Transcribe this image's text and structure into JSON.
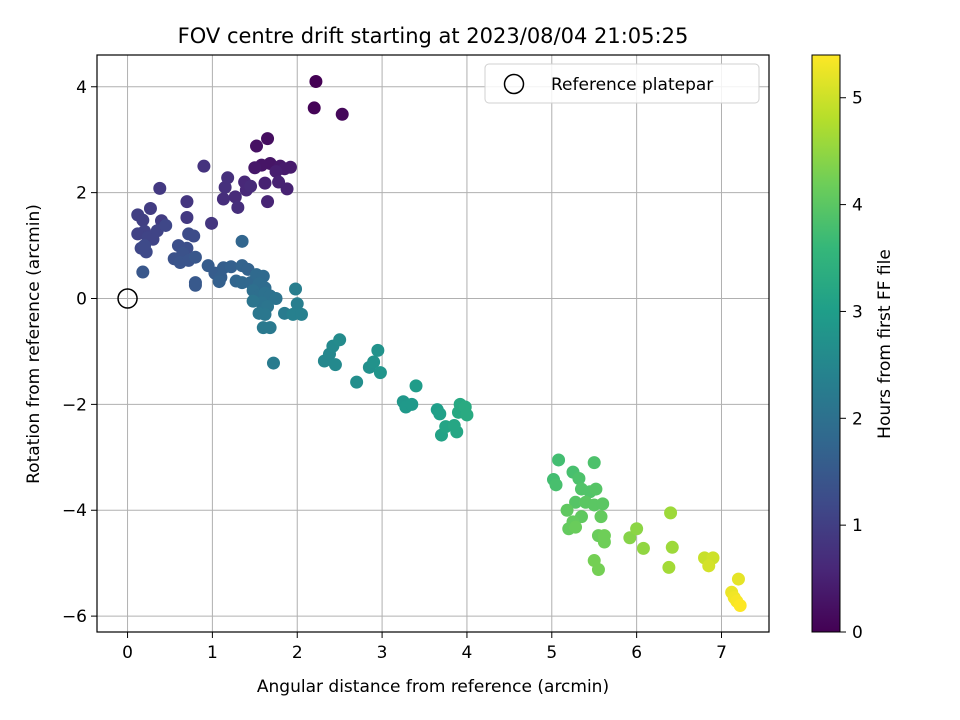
{
  "chart_data": {
    "type": "scatter",
    "title": "FOV centre drift starting at 2023/08/04 21:05:25",
    "xlabel": "Angular distance from reference (arcmin)",
    "ylabel": "Rotation from reference (arcmin)",
    "xlim": [
      -0.36,
      7.56
    ],
    "ylim": [
      -6.3,
      4.6
    ],
    "xticks": [
      0,
      1,
      2,
      3,
      4,
      5,
      6,
      7
    ],
    "yticks": [
      -6,
      -4,
      -2,
      0,
      2,
      4
    ],
    "grid": true,
    "legend": {
      "placement": "top-right",
      "entries": [
        "Reference platepar"
      ]
    },
    "reference_point": {
      "x": 0,
      "y": 0
    },
    "colorbar": {
      "label": "Hours from first FF file",
      "range": [
        0,
        5.4
      ],
      "ticks": [
        0,
        1,
        2,
        3,
        4,
        5
      ],
      "colormap": [
        "#440154",
        "#482878",
        "#3e4a89",
        "#31688e",
        "#26828e",
        "#1f9e89",
        "#35b779",
        "#6ece58",
        "#b5de2b",
        "#fde725"
      ]
    },
    "points": [
      {
        "x": 2.22,
        "y": 4.1,
        "t": 0.0
      },
      {
        "x": 2.2,
        "y": 3.6,
        "t": 0.05
      },
      {
        "x": 2.53,
        "y": 3.48,
        "t": 0.1
      },
      {
        "x": 1.65,
        "y": 3.02,
        "t": 0.2
      },
      {
        "x": 1.52,
        "y": 2.88,
        "t": 0.25
      },
      {
        "x": 1.68,
        "y": 2.55,
        "t": 0.3
      },
      {
        "x": 1.58,
        "y": 2.52,
        "t": 0.3
      },
      {
        "x": 1.5,
        "y": 2.47,
        "t": 0.35
      },
      {
        "x": 1.8,
        "y": 2.5,
        "t": 0.35
      },
      {
        "x": 1.92,
        "y": 2.48,
        "t": 0.4
      },
      {
        "x": 1.85,
        "y": 2.45,
        "t": 0.4
      },
      {
        "x": 1.75,
        "y": 2.4,
        "t": 0.45
      },
      {
        "x": 1.62,
        "y": 2.18,
        "t": 0.5
      },
      {
        "x": 1.88,
        "y": 2.07,
        "t": 0.5
      },
      {
        "x": 1.78,
        "y": 2.2,
        "t": 0.5
      },
      {
        "x": 1.65,
        "y": 1.83,
        "t": 0.55
      },
      {
        "x": 1.38,
        "y": 2.2,
        "t": 0.6
      },
      {
        "x": 1.4,
        "y": 2.05,
        "t": 0.6
      },
      {
        "x": 1.45,
        "y": 2.12,
        "t": 0.65
      },
      {
        "x": 1.27,
        "y": 1.92,
        "t": 0.65
      },
      {
        "x": 1.3,
        "y": 1.72,
        "t": 0.7
      },
      {
        "x": 1.13,
        "y": 1.88,
        "t": 0.7
      },
      {
        "x": 1.15,
        "y": 2.1,
        "t": 0.75
      },
      {
        "x": 1.18,
        "y": 2.28,
        "t": 0.75
      },
      {
        "x": 0.9,
        "y": 2.5,
        "t": 0.8
      },
      {
        "x": 0.99,
        "y": 1.42,
        "t": 0.85
      },
      {
        "x": 0.7,
        "y": 1.83,
        "t": 0.85
      },
      {
        "x": 0.7,
        "y": 1.53,
        "t": 0.9
      },
      {
        "x": 0.38,
        "y": 2.08,
        "t": 0.9
      },
      {
        "x": 0.4,
        "y": 1.47,
        "t": 0.95
      },
      {
        "x": 0.27,
        "y": 1.7,
        "t": 0.95
      },
      {
        "x": 0.12,
        "y": 1.58,
        "t": 1.0
      },
      {
        "x": 0.18,
        "y": 1.48,
        "t": 1.0
      },
      {
        "x": 0.2,
        "y": 1.27,
        "t": 1.05
      },
      {
        "x": 0.12,
        "y": 1.22,
        "t": 1.05
      },
      {
        "x": 0.24,
        "y": 1.15,
        "t": 1.1
      },
      {
        "x": 0.3,
        "y": 1.12,
        "t": 1.1
      },
      {
        "x": 0.35,
        "y": 1.28,
        "t": 1.1
      },
      {
        "x": 0.45,
        "y": 1.38,
        "t": 1.15
      },
      {
        "x": 0.16,
        "y": 0.95,
        "t": 1.15
      },
      {
        "x": 0.22,
        "y": 0.88,
        "t": 1.2
      },
      {
        "x": 0.2,
        "y": 1.0,
        "t": 1.2
      },
      {
        "x": 0.72,
        "y": 1.22,
        "t": 1.25
      },
      {
        "x": 0.78,
        "y": 1.18,
        "t": 1.25
      },
      {
        "x": 0.6,
        "y": 1.0,
        "t": 1.3
      },
      {
        "x": 0.7,
        "y": 0.95,
        "t": 1.3
      },
      {
        "x": 0.65,
        "y": 0.85,
        "t": 1.35
      },
      {
        "x": 0.55,
        "y": 0.75,
        "t": 1.35
      },
      {
        "x": 0.62,
        "y": 0.68,
        "t": 1.4
      },
      {
        "x": 0.72,
        "y": 0.72,
        "t": 1.4
      },
      {
        "x": 0.8,
        "y": 0.78,
        "t": 1.45
      },
      {
        "x": 0.18,
        "y": 0.5,
        "t": 1.45
      },
      {
        "x": 0.8,
        "y": 0.3,
        "t": 1.5
      },
      {
        "x": 0.8,
        "y": 0.25,
        "t": 1.5
      },
      {
        "x": 0.95,
        "y": 0.62,
        "t": 1.55
      },
      {
        "x": 1.03,
        "y": 0.48,
        "t": 1.55
      },
      {
        "x": 1.1,
        "y": 0.4,
        "t": 1.6
      },
      {
        "x": 1.13,
        "y": 0.58,
        "t": 1.6
      },
      {
        "x": 1.08,
        "y": 0.32,
        "t": 1.65
      },
      {
        "x": 1.22,
        "y": 0.6,
        "t": 1.65
      },
      {
        "x": 1.35,
        "y": 0.62,
        "t": 1.7
      },
      {
        "x": 1.42,
        "y": 0.55,
        "t": 1.7
      },
      {
        "x": 1.35,
        "y": 1.08,
        "t": 1.75
      },
      {
        "x": 1.28,
        "y": 0.33,
        "t": 1.75
      },
      {
        "x": 1.35,
        "y": 0.3,
        "t": 1.8
      },
      {
        "x": 1.45,
        "y": 0.3,
        "t": 1.8
      },
      {
        "x": 1.52,
        "y": 0.45,
        "t": 1.85
      },
      {
        "x": 1.6,
        "y": 0.42,
        "t": 1.85
      },
      {
        "x": 1.55,
        "y": 0.28,
        "t": 1.9
      },
      {
        "x": 1.62,
        "y": 0.2,
        "t": 1.9
      },
      {
        "x": 1.48,
        "y": 0.15,
        "t": 1.95
      },
      {
        "x": 1.55,
        "y": 0.05,
        "t": 1.95
      },
      {
        "x": 1.62,
        "y": 0.1,
        "t": 2.0
      },
      {
        "x": 1.68,
        "y": 0.05,
        "t": 2.0
      },
      {
        "x": 1.75,
        "y": 0.0,
        "t": 2.05
      },
      {
        "x": 1.58,
        "y": -0.08,
        "t": 2.05
      },
      {
        "x": 1.48,
        "y": -0.05,
        "t": 2.1
      },
      {
        "x": 1.65,
        "y": -0.15,
        "t": 2.1
      },
      {
        "x": 1.55,
        "y": -0.28,
        "t": 2.15
      },
      {
        "x": 1.62,
        "y": -0.3,
        "t": 2.15
      },
      {
        "x": 1.6,
        "y": -0.55,
        "t": 2.2
      },
      {
        "x": 1.68,
        "y": -0.55,
        "t": 2.2
      },
      {
        "x": 1.72,
        "y": -1.22,
        "t": 2.25
      },
      {
        "x": 1.85,
        "y": -0.28,
        "t": 2.25
      },
      {
        "x": 1.98,
        "y": 0.18,
        "t": 2.3
      },
      {
        "x": 2.0,
        "y": -0.1,
        "t": 2.3
      },
      {
        "x": 1.95,
        "y": -0.3,
        "t": 2.35
      },
      {
        "x": 2.05,
        "y": -0.3,
        "t": 2.35
      },
      {
        "x": 2.32,
        "y": -1.18,
        "t": 2.5
      },
      {
        "x": 2.38,
        "y": -1.05,
        "t": 2.5
      },
      {
        "x": 2.42,
        "y": -0.9,
        "t": 2.55
      },
      {
        "x": 2.45,
        "y": -1.25,
        "t": 2.55
      },
      {
        "x": 2.5,
        "y": -0.78,
        "t": 2.6
      },
      {
        "x": 2.7,
        "y": -1.58,
        "t": 2.65
      },
      {
        "x": 2.85,
        "y": -1.3,
        "t": 2.7
      },
      {
        "x": 2.9,
        "y": -1.2,
        "t": 2.75
      },
      {
        "x": 2.95,
        "y": -0.98,
        "t": 2.75
      },
      {
        "x": 2.98,
        "y": -1.4,
        "t": 2.8
      },
      {
        "x": 3.25,
        "y": -1.95,
        "t": 2.85
      },
      {
        "x": 3.28,
        "y": -2.05,
        "t": 2.9
      },
      {
        "x": 3.35,
        "y": -2.0,
        "t": 2.9
      },
      {
        "x": 3.4,
        "y": -1.65,
        "t": 2.95
      },
      {
        "x": 3.65,
        "y": -2.1,
        "t": 3.0
      },
      {
        "x": 3.68,
        "y": -2.18,
        "t": 3.05
      },
      {
        "x": 3.7,
        "y": -2.58,
        "t": 3.1
      },
      {
        "x": 3.75,
        "y": -2.42,
        "t": 3.15
      },
      {
        "x": 3.85,
        "y": -2.4,
        "t": 3.2
      },
      {
        "x": 3.88,
        "y": -2.52,
        "t": 3.2
      },
      {
        "x": 3.9,
        "y": -2.15,
        "t": 3.25
      },
      {
        "x": 3.92,
        "y": -2.0,
        "t": 3.25
      },
      {
        "x": 3.98,
        "y": -2.05,
        "t": 3.3
      },
      {
        "x": 4.0,
        "y": -2.2,
        "t": 3.3
      },
      {
        "x": 5.08,
        "y": -3.05,
        "t": 3.75
      },
      {
        "x": 5.02,
        "y": -3.42,
        "t": 3.75
      },
      {
        "x": 5.05,
        "y": -3.52,
        "t": 3.8
      },
      {
        "x": 5.25,
        "y": -3.28,
        "t": 3.8
      },
      {
        "x": 5.5,
        "y": -3.1,
        "t": 3.85
      },
      {
        "x": 5.32,
        "y": -3.4,
        "t": 3.85
      },
      {
        "x": 5.35,
        "y": -3.6,
        "t": 3.9
      },
      {
        "x": 5.45,
        "y": -3.65,
        "t": 3.9
      },
      {
        "x": 5.52,
        "y": -3.6,
        "t": 3.95
      },
      {
        "x": 5.28,
        "y": -3.85,
        "t": 3.95
      },
      {
        "x": 5.4,
        "y": -3.85,
        "t": 4.0
      },
      {
        "x": 5.5,
        "y": -3.9,
        "t": 4.0
      },
      {
        "x": 5.6,
        "y": -3.88,
        "t": 4.0
      },
      {
        "x": 5.18,
        "y": -4.0,
        "t": 4.05
      },
      {
        "x": 5.35,
        "y": -4.12,
        "t": 4.05
      },
      {
        "x": 5.58,
        "y": -4.12,
        "t": 4.1
      },
      {
        "x": 5.25,
        "y": -4.22,
        "t": 4.1
      },
      {
        "x": 5.2,
        "y": -4.35,
        "t": 4.1
      },
      {
        "x": 5.28,
        "y": -4.32,
        "t": 4.15
      },
      {
        "x": 5.55,
        "y": -4.48,
        "t": 4.15
      },
      {
        "x": 5.62,
        "y": -4.48,
        "t": 4.2
      },
      {
        "x": 5.62,
        "y": -4.6,
        "t": 4.2
      },
      {
        "x": 5.5,
        "y": -4.95,
        "t": 4.25
      },
      {
        "x": 5.55,
        "y": -5.12,
        "t": 4.25
      },
      {
        "x": 5.92,
        "y": -4.52,
        "t": 4.4
      },
      {
        "x": 6.0,
        "y": -4.35,
        "t": 4.45
      },
      {
        "x": 6.08,
        "y": -4.72,
        "t": 4.5
      },
      {
        "x": 6.4,
        "y": -4.05,
        "t": 4.6
      },
      {
        "x": 6.42,
        "y": -4.7,
        "t": 4.6
      },
      {
        "x": 6.38,
        "y": -5.08,
        "t": 4.65
      },
      {
        "x": 6.8,
        "y": -4.9,
        "t": 4.95
      },
      {
        "x": 6.9,
        "y": -4.9,
        "t": 5.0
      },
      {
        "x": 6.85,
        "y": -5.05,
        "t": 5.05
      },
      {
        "x": 7.2,
        "y": -5.3,
        "t": 5.2
      },
      {
        "x": 7.12,
        "y": -5.55,
        "t": 5.25
      },
      {
        "x": 7.15,
        "y": -5.65,
        "t": 5.3
      },
      {
        "x": 7.18,
        "y": -5.72,
        "t": 5.35
      },
      {
        "x": 7.22,
        "y": -5.8,
        "t": 5.4
      }
    ]
  }
}
